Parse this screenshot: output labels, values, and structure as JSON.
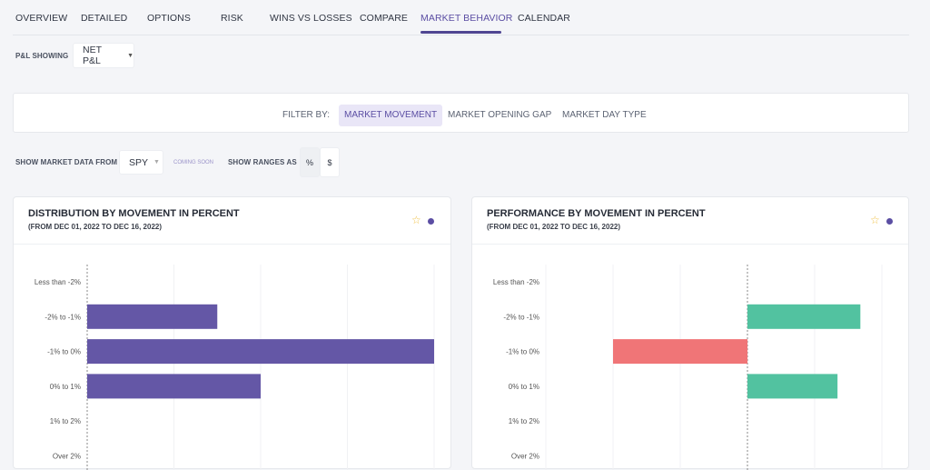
{
  "tabs": [
    {
      "label": "OVERVIEW"
    },
    {
      "label": "DETAILED"
    },
    {
      "label": "OPTIONS"
    },
    {
      "label": "RISK"
    },
    {
      "label": "WINS VS LOSSES"
    },
    {
      "label": "COMPARE"
    },
    {
      "label": "MARKET BEHAVIOR",
      "active": true
    },
    {
      "label": "CALENDAR"
    }
  ],
  "pnl": {
    "label": "P&L SHOWING",
    "value": "NET P&L"
  },
  "filter": {
    "label": "FILTER BY:",
    "options": [
      {
        "label": "MARKET MOVEMENT",
        "active": true
      },
      {
        "label": "MARKET OPENING GAP"
      },
      {
        "label": "MARKET DAY TYPE"
      }
    ]
  },
  "market": {
    "label": "SHOW MARKET DATA FROM",
    "value": "SPY",
    "coming_soon": "COMING SOON",
    "ranges_label": "SHOW RANGES AS",
    "ranges": [
      {
        "label": "%",
        "active": true
      },
      {
        "label": "$"
      }
    ]
  },
  "colors": {
    "accent": "#5b4ea3",
    "bar": "#6457a6",
    "positive": "#52c2a0",
    "negative": "#f07577",
    "star": "#f0c24a"
  },
  "chart_data": [
    {
      "type": "bar",
      "orientation": "horizontal",
      "title": "DISTRIBUTION BY MOVEMENT IN PERCENT",
      "subtitle": "(FROM DEC 01, 2022 TO DEC 16, 2022)",
      "categories": [
        "Less than -2%",
        "-2% to -1%",
        "-1% to 0%",
        "0% to 1%",
        "1% to 2%",
        "Over 2%"
      ],
      "values": [
        0,
        3,
        8,
        4,
        0,
        0
      ],
      "xlim": [
        0,
        8
      ],
      "grid": true
    },
    {
      "type": "bar",
      "orientation": "horizontal",
      "title": "PERFORMANCE BY MOVEMENT IN PERCENT",
      "subtitle": "(FROM DEC 01, 2022 TO DEC 16, 2022)",
      "categories": [
        "Less than -2%",
        "-2% to -1%",
        "-1% to 0%",
        "0% to 1%",
        "1% to 2%",
        "Over 2%"
      ],
      "values": [
        0,
        1.68,
        -2.0,
        1.34,
        0,
        0
      ],
      "xlim": [
        -3,
        2
      ],
      "grid": true
    }
  ]
}
